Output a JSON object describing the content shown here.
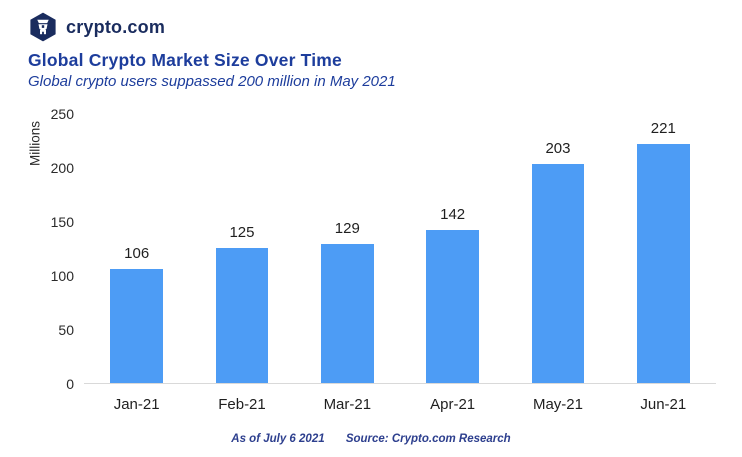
{
  "header": {
    "brand": "crypto.com"
  },
  "title": "Global Crypto Market Size Over Time",
  "subtitle": "Global crypto users suppassed 200 million in May 2021",
  "footer": {
    "as_of": "As of July 6 2021",
    "source": "Source: Crypto.com Research"
  },
  "colors": {
    "bar": "#4d9cf5",
    "title": "#1d3d9c",
    "brand_navy": "#1a2c5e",
    "footer": "#2d3f8e",
    "axis_line": "#d9d9d9",
    "label": "#1f1f1f"
  },
  "chart_data": {
    "type": "bar",
    "categories": [
      "Jan-21",
      "Feb-21",
      "Mar-21",
      "Apr-21",
      "May-21",
      "Jun-21"
    ],
    "values": [
      106,
      125,
      129,
      142,
      203,
      221
    ],
    "title": "Global Crypto Market Size Over Time",
    "subtitle": "Global crypto users suppassed 200 million in May 2021",
    "xlabel": "",
    "ylabel": "Millions",
    "ylim": [
      0,
      250
    ],
    "yticks": [
      0,
      50,
      100,
      150,
      200,
      250
    ],
    "grid": false,
    "legend": false,
    "data_labels": true
  }
}
